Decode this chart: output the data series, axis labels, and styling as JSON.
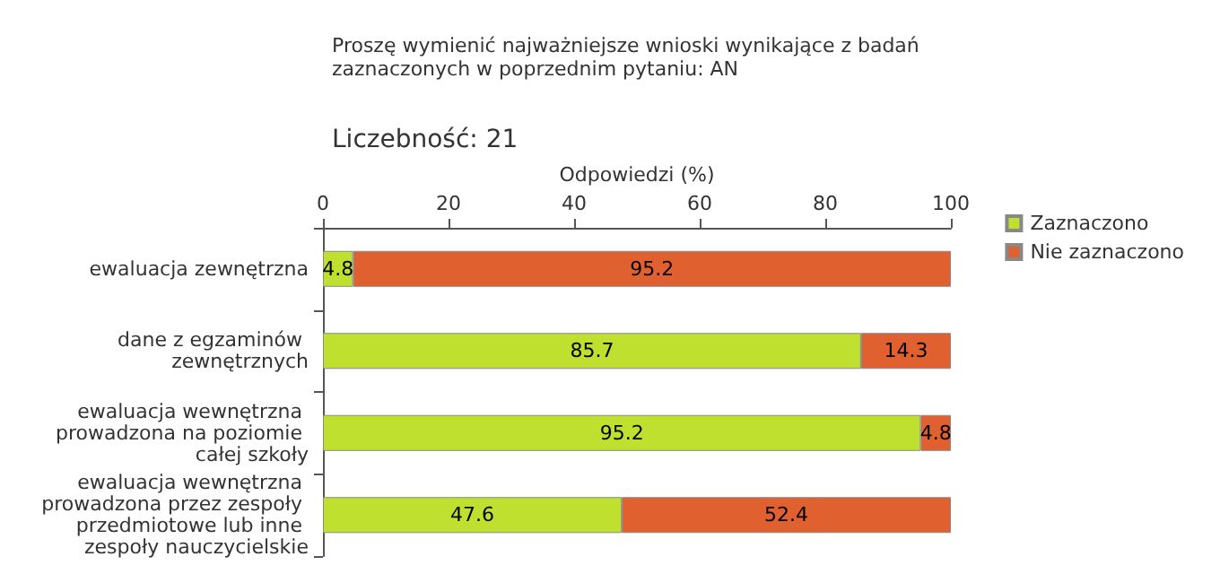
{
  "chart_data": {
    "type": "bar",
    "orientation": "horizontal",
    "stacked": true,
    "title": "Proszę wymienić najważniejsze wnioski wynikające z badań zaznaczonych w poprzednim pytaniu: AN",
    "subtitle": "Liczebność: 21",
    "xlabel": "Odpowiedzi (%)",
    "categories": [
      "ewaluacja zewnętrzna",
      "dane z egzaminów zewnętrznych",
      "ewaluacja wewnętrzna prowadzona na poziomie całej szkoły",
      "ewaluacja wewnętrzna prowadzona przez zespoły przedmiotowe lub inne zespoły nauczycielskie"
    ],
    "series": [
      {
        "name": "Zaznaczono",
        "color": "#c0e030",
        "values": [
          4.8,
          85.7,
          95.2,
          47.6
        ]
      },
      {
        "name": "Nie zaznaczono",
        "color": "#e06030",
        "values": [
          95.2,
          14.3,
          4.8,
          52.4
        ]
      }
    ],
    "xlim": [
      0,
      100
    ],
    "xticks": [
      0,
      20,
      40,
      60,
      80,
      100
    ],
    "data_labels": true,
    "grid": false,
    "legend": "top right"
  }
}
